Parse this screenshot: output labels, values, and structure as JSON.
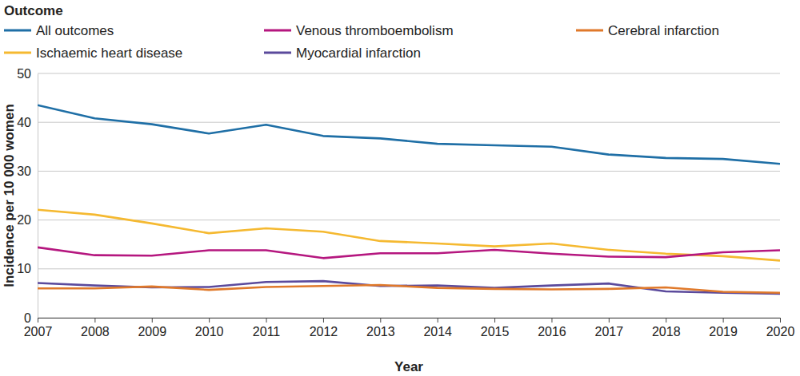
{
  "chart_data": {
    "type": "line",
    "legend_title": "Outcome",
    "x_label": "Year",
    "y_label": "Incidence per 10 000 women",
    "x": [
      2007,
      2008,
      2009,
      2010,
      2011,
      2012,
      2013,
      2014,
      2015,
      2016,
      2017,
      2018,
      2019,
      2020
    ],
    "xlim": [
      2007,
      2020
    ],
    "xticks": [
      2007,
      2008,
      2009,
      2010,
      2011,
      2012,
      2013,
      2014,
      2015,
      2016,
      2017,
      2018,
      2019,
      2020
    ],
    "ylim": [
      0,
      50
    ],
    "yticks": [
      0,
      10,
      20,
      30,
      40,
      50
    ],
    "grid": true,
    "legend": "top",
    "series": [
      {
        "name": "All outcomes",
        "color": "#1f6fa6",
        "values": [
          43.5,
          40.8,
          39.6,
          37.7,
          39.5,
          37.2,
          36.7,
          35.6,
          35.3,
          35.0,
          33.4,
          32.7,
          32.5,
          31.5
        ]
      },
      {
        "name": "Ischaemic heart disease",
        "color": "#f5b931",
        "values": [
          22.1,
          21.1,
          19.3,
          17.3,
          18.3,
          17.6,
          15.7,
          15.2,
          14.6,
          15.2,
          13.9,
          13.1,
          12.6,
          11.7
        ]
      },
      {
        "name": "Venous thromboembolism",
        "color": "#b5177f",
        "values": [
          14.4,
          12.8,
          12.7,
          13.8,
          13.8,
          12.2,
          13.2,
          13.2,
          13.9,
          13.1,
          12.5,
          12.4,
          13.4,
          13.8
        ]
      },
      {
        "name": "Myocardial infarction",
        "color": "#5b4a9c",
        "values": [
          7.1,
          6.6,
          6.2,
          6.3,
          7.3,
          7.5,
          6.5,
          6.6,
          6.1,
          6.6,
          7.0,
          5.4,
          5.1,
          4.9
        ]
      },
      {
        "name": "Cerebral infarction",
        "color": "#e0792a",
        "values": [
          6.0,
          6.0,
          6.4,
          5.7,
          6.3,
          6.5,
          6.7,
          6.1,
          5.9,
          5.8,
          5.9,
          6.2,
          5.3,
          5.1
        ]
      }
    ]
  }
}
